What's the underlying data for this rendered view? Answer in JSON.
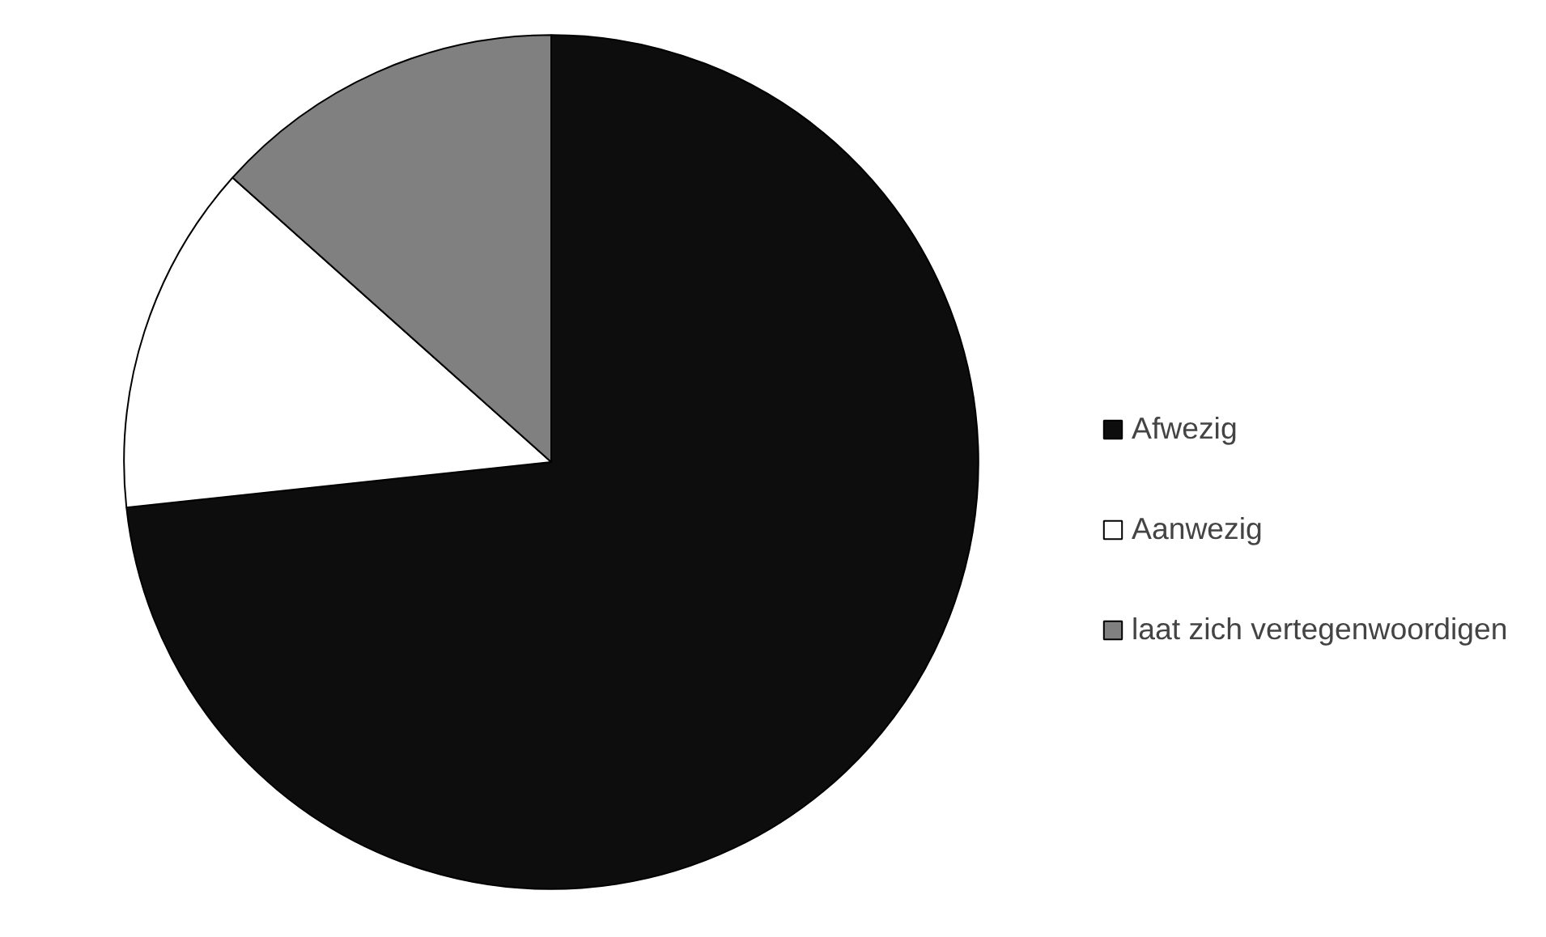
{
  "chart_data": {
    "type": "pie",
    "categories": [
      "Afwezig",
      "Aanwezig",
      "laat zich vertegenwoordigen"
    ],
    "values": [
      73.3,
      13.3,
      13.4
    ],
    "colors": [
      "#0d0d0d",
      "#ffffff",
      "#808080"
    ],
    "legend": "right"
  }
}
